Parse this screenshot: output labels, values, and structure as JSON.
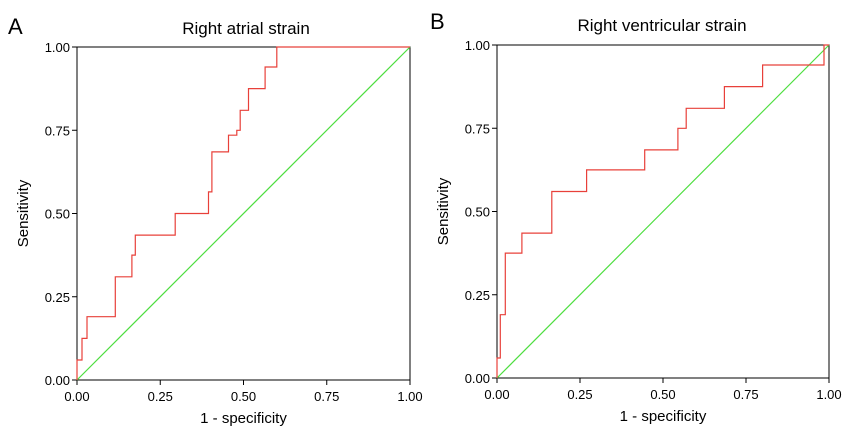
{
  "chart_data": [
    {
      "panel": "A",
      "type": "line",
      "title": "Right atrial strain",
      "xlabel": "1 - specificity",
      "ylabel": "Sensitivity",
      "xlim": [
        0,
        1
      ],
      "ylim": [
        0,
        1
      ],
      "xticks": [
        "0.00",
        "0.25",
        "0.50",
        "0.75",
        "1.00"
      ],
      "yticks": [
        "0.00",
        "0.25",
        "0.50",
        "0.75",
        "1.00"
      ],
      "grid": false,
      "series": [
        {
          "color": "#e8403a",
          "x": [
            0.0,
            0.0,
            0.015,
            0.015,
            0.03,
            0.03,
            0.115,
            0.115,
            0.165,
            0.165,
            0.175,
            0.175,
            0.295,
            0.295,
            0.395,
            0.395,
            0.405,
            0.405,
            0.455,
            0.455,
            0.48,
            0.48,
            0.49,
            0.49,
            0.515,
            0.515,
            0.565,
            0.565,
            0.6,
            0.6,
            0.64,
            0.64,
            1.0
          ],
          "y": [
            0.0,
            0.06,
            0.06,
            0.125,
            0.125,
            0.19,
            0.19,
            0.31,
            0.31,
            0.375,
            0.375,
            0.435,
            0.435,
            0.5,
            0.5,
            0.565,
            0.565,
            0.685,
            0.685,
            0.735,
            0.735,
            0.75,
            0.75,
            0.81,
            0.81,
            0.875,
            0.875,
            0.94,
            0.94,
            1.0,
            1.0,
            1.0,
            1.0
          ]
        },
        {
          "color": "#4dde3f",
          "x": [
            0,
            1
          ],
          "y": [
            0,
            1
          ]
        }
      ]
    },
    {
      "panel": "B",
      "type": "line",
      "title": "Right ventricular strain",
      "xlabel": "1 - specificity",
      "ylabel": "Sensitivity",
      "xlim": [
        0,
        1
      ],
      "ylim": [
        0,
        1
      ],
      "xticks": [
        "0.00",
        "0.25",
        "0.50",
        "0.75",
        "1.00"
      ],
      "yticks": [
        "0.00",
        "0.25",
        "0.50",
        "0.75",
        "1.00"
      ],
      "grid": false,
      "series": [
        {
          "color": "#e8403a",
          "x": [
            0.0,
            0.0,
            0.01,
            0.01,
            0.025,
            0.025,
            0.075,
            0.075,
            0.1,
            0.1,
            0.165,
            0.165,
            0.27,
            0.27,
            0.445,
            0.445,
            0.545,
            0.545,
            0.57,
            0.57,
            0.685,
            0.685,
            0.8,
            0.8,
            0.985,
            0.985,
            1.0
          ],
          "y": [
            0.0,
            0.06,
            0.06,
            0.19,
            0.19,
            0.375,
            0.375,
            0.435,
            0.435,
            0.435,
            0.435,
            0.56,
            0.56,
            0.625,
            0.625,
            0.685,
            0.685,
            0.75,
            0.75,
            0.81,
            0.81,
            0.875,
            0.875,
            0.94,
            0.94,
            1.0,
            1.0
          ]
        },
        {
          "color": "#4dde3f",
          "x": [
            0,
            1
          ],
          "y": [
            0,
            1
          ]
        }
      ]
    }
  ]
}
